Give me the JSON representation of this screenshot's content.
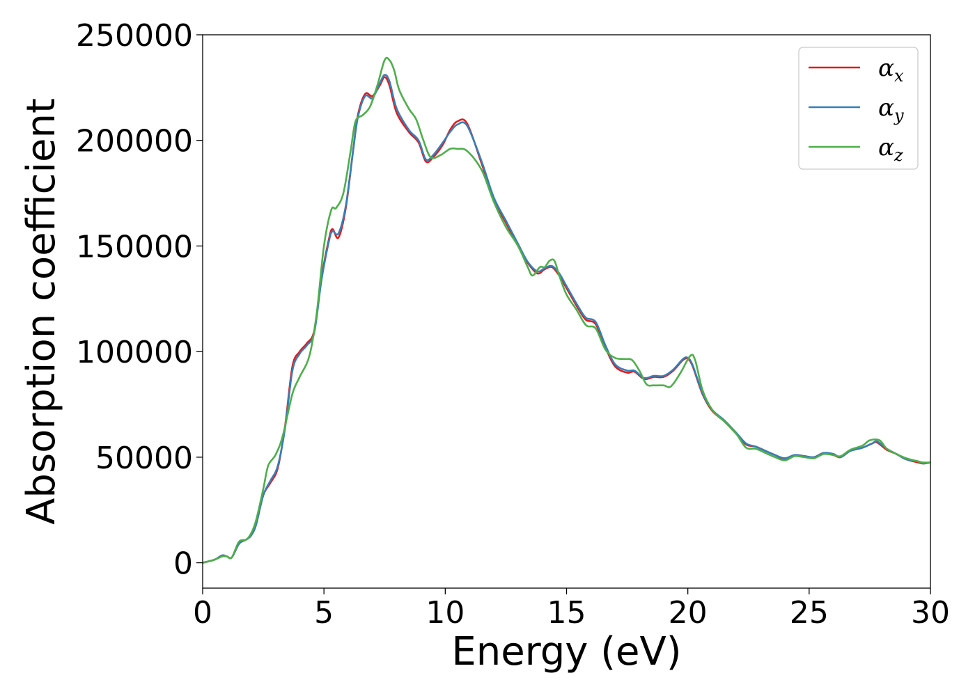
{
  "chart_data": {
    "type": "line",
    "title": "",
    "xlabel": "Energy (eV)",
    "ylabel": "Absorption coefficient",
    "xlim": [
      0,
      30
    ],
    "ylim": [
      -12000,
      250000
    ],
    "xticks": [
      0,
      5,
      10,
      15,
      20,
      25,
      30
    ],
    "xtick_labels": [
      "0",
      "5",
      "10",
      "15",
      "20",
      "25",
      "30"
    ],
    "yticks": [
      0,
      50000,
      100000,
      150000,
      200000,
      250000
    ],
    "ytick_labels": [
      "0",
      "50000",
      "100000",
      "150000",
      "200000",
      "250000"
    ],
    "grid": false,
    "legend_position": "top-right",
    "series": [
      {
        "name": "αx",
        "name_base": "α",
        "name_sub": "x",
        "color": "#e41a1c",
        "points": [
          [
            0,
            0
          ],
          [
            0.5,
            1500
          ],
          [
            0.8,
            3500
          ],
          [
            1.0,
            3000
          ],
          [
            1.2,
            2500
          ],
          [
            1.5,
            9000
          ],
          [
            1.8,
            11000
          ],
          [
            2.0,
            13000
          ],
          [
            2.2,
            18000
          ],
          [
            2.5,
            32000
          ],
          [
            2.8,
            38000
          ],
          [
            3.1,
            45000
          ],
          [
            3.4,
            65000
          ],
          [
            3.7,
            93000
          ],
          [
            4.0,
            100000
          ],
          [
            4.3,
            104000
          ],
          [
            4.6,
            110000
          ],
          [
            4.9,
            135000
          ],
          [
            5.2,
            153000
          ],
          [
            5.35,
            158000
          ],
          [
            5.6,
            154000
          ],
          [
            5.9,
            168000
          ],
          [
            6.2,
            195000
          ],
          [
            6.4,
            212000
          ],
          [
            6.7,
            222000
          ],
          [
            7.0,
            221000
          ],
          [
            7.3,
            226000
          ],
          [
            7.5,
            230000
          ],
          [
            7.7,
            226000
          ],
          [
            8.0,
            213000
          ],
          [
            8.5,
            204000
          ],
          [
            8.9,
            199000
          ],
          [
            9.2,
            190000
          ],
          [
            9.5,
            192000
          ],
          [
            9.9,
            198000
          ],
          [
            10.2,
            205000
          ],
          [
            10.5,
            209000
          ],
          [
            10.9,
            208000
          ],
          [
            11.5,
            189000
          ],
          [
            12.0,
            172000
          ],
          [
            12.5,
            161000
          ],
          [
            13.0,
            150000
          ],
          [
            13.4,
            142000
          ],
          [
            13.8,
            137000
          ],
          [
            14.1,
            139000
          ],
          [
            14.4,
            140000
          ],
          [
            14.7,
            136000
          ],
          [
            15.0,
            130000
          ],
          [
            15.5,
            120000
          ],
          [
            15.8,
            115000
          ],
          [
            16.2,
            113000
          ],
          [
            16.6,
            102000
          ],
          [
            17.0,
            93000
          ],
          [
            17.5,
            90000
          ],
          [
            17.8,
            90500
          ],
          [
            18.2,
            87000
          ],
          [
            18.6,
            88000
          ],
          [
            19.0,
            88000
          ],
          [
            19.4,
            91000
          ],
          [
            19.8,
            96000
          ],
          [
            20.0,
            96500
          ],
          [
            20.2,
            93000
          ],
          [
            20.6,
            80000
          ],
          [
            21.0,
            72000
          ],
          [
            21.5,
            67000
          ],
          [
            22.0,
            61000
          ],
          [
            22.4,
            56000
          ],
          [
            22.8,
            55000
          ],
          [
            23.2,
            53000
          ],
          [
            23.6,
            51000
          ],
          [
            24.0,
            49000
          ],
          [
            24.4,
            51000
          ],
          [
            24.8,
            50500
          ],
          [
            25.2,
            50000
          ],
          [
            25.6,
            52000
          ],
          [
            26.0,
            51000
          ],
          [
            26.3,
            50000
          ],
          [
            26.7,
            53000
          ],
          [
            27.2,
            54500
          ],
          [
            27.6,
            56500
          ],
          [
            27.8,
            57000
          ],
          [
            28.2,
            53500
          ],
          [
            28.6,
            51500
          ],
          [
            29.0,
            49000
          ],
          [
            29.5,
            47500
          ],
          [
            29.7,
            47000
          ],
          [
            30,
            47500
          ]
        ]
      },
      {
        "name": "αy",
        "name_base": "α",
        "name_sub": "y",
        "color": "#377eb8",
        "points": [
          [
            0,
            0
          ],
          [
            0.5,
            1500
          ],
          [
            0.8,
            3500
          ],
          [
            1.0,
            3000
          ],
          [
            1.2,
            2500
          ],
          [
            1.5,
            9000
          ],
          [
            1.8,
            11000
          ],
          [
            2.0,
            13000
          ],
          [
            2.2,
            18000
          ],
          [
            2.5,
            32000
          ],
          [
            2.8,
            39000
          ],
          [
            3.1,
            46000
          ],
          [
            3.4,
            64000
          ],
          [
            3.7,
            91000
          ],
          [
            4.0,
            99000
          ],
          [
            4.3,
            103000
          ],
          [
            4.6,
            109000
          ],
          [
            4.9,
            134000
          ],
          [
            5.2,
            152000
          ],
          [
            5.35,
            157000
          ],
          [
            5.6,
            156000
          ],
          [
            5.9,
            169000
          ],
          [
            6.2,
            195000
          ],
          [
            6.4,
            211000
          ],
          [
            6.7,
            221000
          ],
          [
            7.0,
            220000
          ],
          [
            7.3,
            227000
          ],
          [
            7.5,
            231000
          ],
          [
            7.7,
            228000
          ],
          [
            8.0,
            215000
          ],
          [
            8.5,
            205000
          ],
          [
            8.9,
            200000
          ],
          [
            9.2,
            191000
          ],
          [
            9.5,
            193000
          ],
          [
            9.9,
            199000
          ],
          [
            10.2,
            204000
          ],
          [
            10.5,
            207500
          ],
          [
            10.9,
            207000
          ],
          [
            11.5,
            190000
          ],
          [
            12.0,
            173000
          ],
          [
            12.5,
            162000
          ],
          [
            13.0,
            151000
          ],
          [
            13.4,
            142500
          ],
          [
            13.8,
            138000
          ],
          [
            14.1,
            139500
          ],
          [
            14.4,
            140500
          ],
          [
            14.7,
            137000
          ],
          [
            15.0,
            131000
          ],
          [
            15.5,
            121000
          ],
          [
            15.8,
            116000
          ],
          [
            16.2,
            114000
          ],
          [
            16.6,
            103000
          ],
          [
            17.0,
            94000
          ],
          [
            17.5,
            91000
          ],
          [
            17.8,
            91000
          ],
          [
            18.2,
            87500
          ],
          [
            18.6,
            88500
          ],
          [
            19.0,
            88500
          ],
          [
            19.4,
            91500
          ],
          [
            19.8,
            96500
          ],
          [
            20.0,
            97000
          ],
          [
            20.2,
            93500
          ],
          [
            20.6,
            80500
          ],
          [
            21.0,
            72500
          ],
          [
            21.5,
            67500
          ],
          [
            22.0,
            61500
          ],
          [
            22.4,
            56500
          ],
          [
            22.8,
            55000
          ],
          [
            23.2,
            53000
          ],
          [
            23.6,
            51000
          ],
          [
            24.0,
            49500
          ],
          [
            24.4,
            51000
          ],
          [
            24.8,
            50500
          ],
          [
            25.2,
            50000
          ],
          [
            25.6,
            52000
          ],
          [
            26.0,
            51500
          ],
          [
            26.3,
            50000
          ],
          [
            26.7,
            53000
          ],
          [
            27.2,
            54500
          ],
          [
            27.6,
            56500
          ],
          [
            27.8,
            57500
          ],
          [
            28.2,
            54000
          ],
          [
            28.6,
            51500
          ],
          [
            29.0,
            49000
          ],
          [
            29.5,
            48000
          ],
          [
            29.7,
            47000
          ],
          [
            30,
            47500
          ]
        ]
      },
      {
        "name": "αz",
        "name_base": "α",
        "name_sub": "z",
        "color": "#4daf4a",
        "points": [
          [
            0,
            0
          ],
          [
            0.5,
            1500
          ],
          [
            0.8,
            3000
          ],
          [
            1.0,
            3000
          ],
          [
            1.2,
            2500
          ],
          [
            1.5,
            10000
          ],
          [
            1.8,
            11000
          ],
          [
            2.0,
            14000
          ],
          [
            2.2,
            20000
          ],
          [
            2.5,
            35000
          ],
          [
            2.7,
            46000
          ],
          [
            3.0,
            51000
          ],
          [
            3.3,
            60000
          ],
          [
            3.7,
            80000
          ],
          [
            4.0,
            88000
          ],
          [
            4.4,
            98000
          ],
          [
            4.7,
            118000
          ],
          [
            5.0,
            150000
          ],
          [
            5.3,
            167000
          ],
          [
            5.5,
            168000
          ],
          [
            5.8,
            175000
          ],
          [
            6.1,
            195000
          ],
          [
            6.3,
            209000
          ],
          [
            6.6,
            212000
          ],
          [
            6.9,
            216000
          ],
          [
            7.2,
            226000
          ],
          [
            7.5,
            238000
          ],
          [
            7.7,
            238000
          ],
          [
            7.9,
            233000
          ],
          [
            8.1,
            224000
          ],
          [
            8.5,
            215000
          ],
          [
            8.8,
            210000
          ],
          [
            9.1,
            200000
          ],
          [
            9.4,
            192000
          ],
          [
            9.8,
            193000
          ],
          [
            10.2,
            196000
          ],
          [
            10.5,
            196000
          ],
          [
            10.9,
            195000
          ],
          [
            11.5,
            186000
          ],
          [
            12.0,
            171000
          ],
          [
            12.5,
            159000
          ],
          [
            13.0,
            150000
          ],
          [
            13.4,
            140000
          ],
          [
            13.6,
            136000
          ],
          [
            13.9,
            140000
          ],
          [
            14.1,
            140000
          ],
          [
            14.3,
            143000
          ],
          [
            14.5,
            143000
          ],
          [
            14.7,
            136000
          ],
          [
            15.0,
            127000
          ],
          [
            15.4,
            120000
          ],
          [
            15.8,
            112500
          ],
          [
            16.2,
            111000
          ],
          [
            16.6,
            101000
          ],
          [
            17.0,
            97000
          ],
          [
            17.4,
            96500
          ],
          [
            17.7,
            96000
          ],
          [
            18.0,
            91000
          ],
          [
            18.3,
            84500
          ],
          [
            18.6,
            84000
          ],
          [
            19.0,
            84000
          ],
          [
            19.3,
            83500
          ],
          [
            19.7,
            90000
          ],
          [
            20.1,
            98000
          ],
          [
            20.3,
            96000
          ],
          [
            20.6,
            82000
          ],
          [
            21.0,
            72500
          ],
          [
            21.5,
            67000
          ],
          [
            22.0,
            61000
          ],
          [
            22.4,
            54500
          ],
          [
            22.8,
            54000
          ],
          [
            23.2,
            52000
          ],
          [
            23.6,
            50000
          ],
          [
            24.0,
            48500
          ],
          [
            24.4,
            50500
          ],
          [
            24.8,
            50000
          ],
          [
            25.2,
            49500
          ],
          [
            25.6,
            51500
          ],
          [
            26.0,
            51000
          ],
          [
            26.3,
            50500
          ],
          [
            26.7,
            53500
          ],
          [
            27.2,
            55500
          ],
          [
            27.5,
            58000
          ],
          [
            27.9,
            58000
          ],
          [
            28.2,
            54000
          ],
          [
            28.6,
            51500
          ],
          [
            29.0,
            49500
          ],
          [
            29.5,
            48000
          ],
          [
            29.7,
            47500
          ],
          [
            30,
            47500
          ]
        ]
      }
    ]
  }
}
